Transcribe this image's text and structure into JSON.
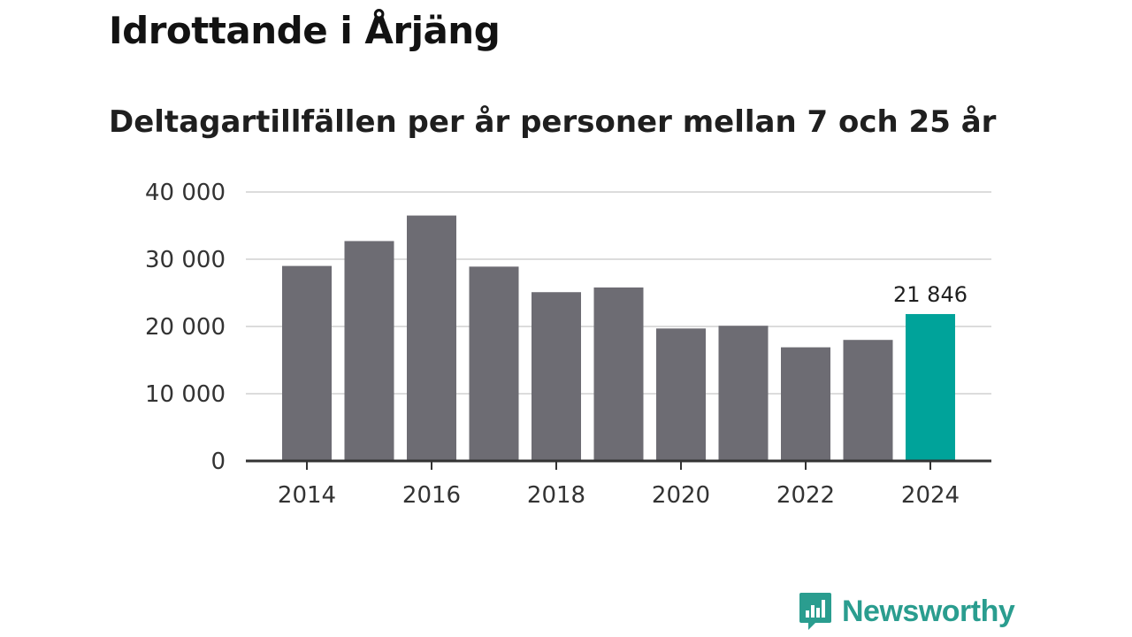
{
  "title": "Idrottande i Årjäng",
  "subtitle": "Deltagartillfällen per år personer mellan 7 och 25 år",
  "brand": {
    "name": "Newsworthy"
  },
  "colors": {
    "bar": "#6d6c73",
    "highlight": "#00a39a",
    "grid": "#dcdcdc",
    "axis": "#333333",
    "brand": "#2a9d8f"
  },
  "chart_data": {
    "type": "bar",
    "title": "Idrottande i Årjäng",
    "subtitle": "Deltagartillfällen per år personer mellan 7 och 25 år",
    "xlabel": "",
    "ylabel": "",
    "categories": [
      "2014",
      "2015",
      "2016",
      "2017",
      "2018",
      "2019",
      "2020",
      "2021",
      "2022",
      "2023",
      "2024"
    ],
    "values": [
      29000,
      32700,
      36500,
      28900,
      25100,
      25800,
      19700,
      20100,
      16900,
      18000,
      21846
    ],
    "highlight_index": 10,
    "ylim": [
      0,
      40000
    ],
    "yticks": [
      0,
      10000,
      20000,
      30000,
      40000
    ],
    "ytick_labels": [
      "0",
      "10 000",
      "20 000",
      "30 000",
      "40 000"
    ],
    "xtick_labels": [
      "2014",
      "2016",
      "2018",
      "2020",
      "2022",
      "2024"
    ],
    "grid": true,
    "data_labels": [
      {
        "index": 10,
        "text": "21 846"
      }
    ]
  }
}
